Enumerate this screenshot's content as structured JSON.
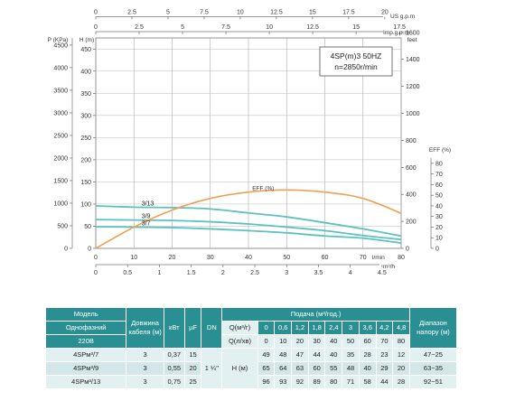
{
  "chart_data": {
    "type": "line",
    "model": "4SP(m)3  50HZ",
    "speed": "n=2850r/min",
    "axes": {
      "us_gpm": {
        "label": "US g.p.m",
        "ticks": [
          "0",
          "2.5",
          "5",
          "7.5",
          "10",
          "12.5",
          "15",
          "17.5",
          "20"
        ]
      },
      "imp_gpm": {
        "label": "Imp.g.p.m",
        "ticks": [
          "0",
          "2.5",
          "5",
          "7.5",
          "10",
          "12.5",
          "15",
          "17.5"
        ]
      },
      "pressure": {
        "label": "P (KPa)",
        "ticks": [
          "0",
          "500",
          "1000",
          "1500",
          "2000",
          "2500",
          "3000",
          "3500",
          "4000",
          "4500"
        ]
      },
      "head_m": {
        "label": "H (m)",
        "ticks": [
          "0",
          "50",
          "100",
          "150",
          "200",
          "250",
          "300",
          "350",
          "400",
          "450"
        ],
        "ylim": [
          0,
          475
        ]
      },
      "feet": {
        "label": "feet",
        "ticks": [
          "0",
          "200",
          "400",
          "600",
          "800",
          "1000",
          "1200",
          "1400",
          "1600"
        ]
      },
      "eff": {
        "label": "EFF (%)",
        "ticks": [
          "0",
          "10",
          "20",
          "30",
          "40",
          "50",
          "60",
          "70",
          "80"
        ]
      },
      "lmin": {
        "label": "l/min",
        "ticks": [
          "0",
          "10",
          "20",
          "30",
          "40",
          "50",
          "60",
          "70",
          "80"
        ],
        "xlim": [
          0,
          80
        ]
      },
      "m3h": {
        "label": "m³/h",
        "ticks": [
          "0",
          "0.5",
          "1",
          "1.5",
          "2",
          "2.5",
          "3",
          "3.5",
          "4",
          "4.5"
        ]
      }
    },
    "x": [
      0,
      10,
      20,
      30,
      40,
      50,
      60,
      70,
      80
    ],
    "series": [
      {
        "name": "3/13",
        "values": [
          96,
          93,
          92,
          89,
          80,
          71,
          58,
          44,
          28
        ],
        "color": "#5cc2c0"
      },
      {
        "name": "3/9",
        "values": [
          65,
          64,
          63,
          60,
          55,
          48,
          40,
          29,
          20
        ],
        "color": "#5cc2c0"
      },
      {
        "name": "3/7",
        "values": [
          49,
          48,
          47,
          44,
          40,
          35,
          28,
          23,
          12
        ],
        "color": "#5cc2c0"
      }
    ],
    "efficiency": {
      "label": "EFF (%)",
      "x": [
        0,
        10,
        20,
        30,
        40,
        50,
        60,
        70,
        80
      ],
      "values": [
        0,
        20,
        36,
        47,
        53,
        55,
        53,
        47,
        33
      ],
      "color": "#f0a054"
    }
  },
  "table": {
    "h_model": "Модель",
    "h_cable": "Довжина кабеля (м)",
    "h_kw": "кВт",
    "h_uf": "µF",
    "h_dn": "DN",
    "h_supply": "Подача (м³/год.)",
    "h_range": "Діапазон напору (м)",
    "h_single": "Однофазний",
    "h_voltage": "220В",
    "q_m3h_label": "Q(м³/г)",
    "q_lmin_label": "Q(л/хв)",
    "h_m_label": "H (м)",
    "dn_value": "1 ¼\"",
    "q_m3h": [
      "0",
      "0,6",
      "1,2",
      "1,8",
      "2,4",
      "3",
      "3,6",
      "4,2",
      "4,8"
    ],
    "q_lmin": [
      "0",
      "10",
      "20",
      "30",
      "40",
      "50",
      "60",
      "70",
      "80"
    ],
    "rows": [
      {
        "model": "4SPм³/7",
        "cable": "3",
        "kw": "0,37",
        "uf": "15",
        "heads": [
          "49",
          "48",
          "47",
          "44",
          "40",
          "35",
          "28",
          "23",
          "12"
        ],
        "range": "47~25"
      },
      {
        "model": "4SPм³/9",
        "cable": "3",
        "kw": "0,55",
        "uf": "20",
        "heads": [
          "65",
          "64",
          "63",
          "60",
          "55",
          "48",
          "40",
          "29",
          "20"
        ],
        "range": "63~35"
      },
      {
        "model": "4SPм³/13",
        "cable": "3",
        "kw": "0,75",
        "uf": "25",
        "heads": [
          "96",
          "93",
          "92",
          "89",
          "80",
          "71",
          "58",
          "44",
          "28"
        ],
        "range": "92~51"
      }
    ]
  }
}
